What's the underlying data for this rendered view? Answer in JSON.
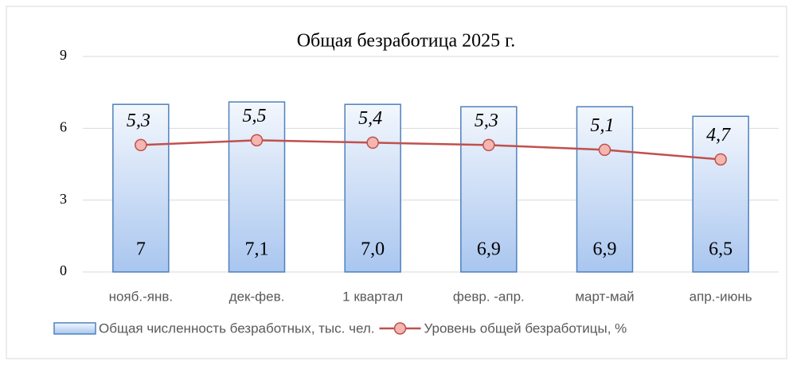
{
  "chart_data": {
    "type": "combo",
    "title": "Общая безработица 2025 г.",
    "categories": [
      "нояб.-янв.",
      "дек-фев.",
      "1 квартал",
      "февр. -апр.",
      "март-май",
      "апр.-июнь"
    ],
    "series": [
      {
        "name": "Общая численность безработных, тыс. чел.",
        "type": "bar",
        "color": "#4f81bd",
        "values": [
          7,
          7.1,
          7.0,
          6.9,
          6.9,
          6.5
        ],
        "value_labels": [
          "7",
          "7,1",
          "7,0",
          "6,9",
          "6,9",
          "6,5"
        ]
      },
      {
        "name": "Уровень общей безработицы, %",
        "type": "line",
        "color": "#c0504d",
        "values": [
          5.3,
          5.5,
          5.4,
          5.3,
          5.1,
          4.7
        ],
        "value_labels": [
          "5,3",
          "5,5",
          "5,4",
          "5,3",
          "5,1",
          "4,7"
        ]
      }
    ],
    "ylim": [
      0,
      9
    ],
    "yticks": [
      0,
      3,
      6,
      9
    ],
    "grid": true,
    "legend": "bottom"
  }
}
